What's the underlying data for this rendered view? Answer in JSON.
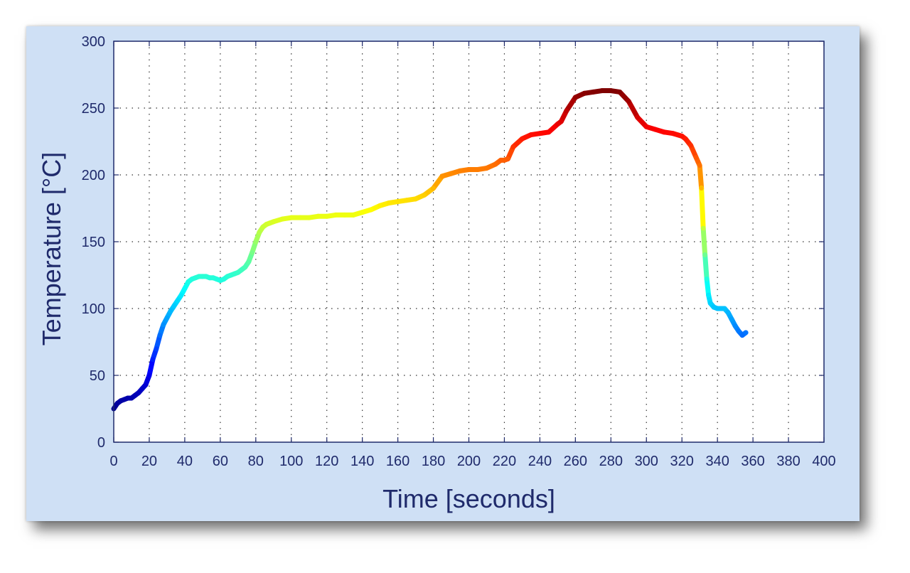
{
  "chart_data": {
    "type": "line",
    "title": "",
    "xlabel": "Time [seconds]",
    "ylabel": "Temperature [°C]",
    "xlim": [
      0,
      400
    ],
    "ylim": [
      0,
      300
    ],
    "xticks": [
      0,
      20,
      40,
      60,
      80,
      100,
      120,
      140,
      160,
      180,
      200,
      220,
      240,
      260,
      280,
      300,
      320,
      340,
      360,
      380,
      400
    ],
    "yticks": [
      0,
      50,
      100,
      150,
      200,
      250,
      300
    ],
    "grid": true,
    "grid_style": "dotted",
    "legend": "none",
    "colormap": "jet (colored by temperature)",
    "colors": {
      "frame_background": "#cfe0f5",
      "plot_background": "#ffffff",
      "axis_text": "#1f2a6b",
      "grid": "#333333"
    },
    "series": [
      {
        "x": [
          0,
          2,
          4,
          6,
          8,
          10,
          12,
          14,
          16,
          18,
          20,
          22,
          24,
          26,
          28,
          30,
          32,
          34,
          36,
          38,
          40,
          42,
          44,
          46,
          48,
          50,
          52,
          54,
          56,
          58,
          60,
          62,
          64,
          66,
          68,
          70,
          72,
          74,
          76,
          78,
          80,
          82,
          84,
          86,
          88,
          90,
          95,
          100,
          105,
          110,
          115,
          120,
          125,
          130,
          135,
          140,
          145,
          150,
          155,
          160,
          165,
          170,
          175,
          180,
          185,
          190,
          195,
          200,
          205,
          210,
          215,
          218,
          220,
          222,
          225,
          230,
          235,
          240,
          245,
          250,
          252,
          255,
          260,
          265,
          270,
          275,
          280,
          285,
          290,
          295,
          300,
          305,
          310,
          315,
          320,
          322,
          325,
          328,
          329,
          330,
          331,
          332,
          333,
          334,
          335,
          336,
          338,
          340,
          342,
          344,
          346,
          348,
          350,
          352,
          354,
          356
        ],
        "y": [
          25,
          29,
          31,
          32,
          33,
          33,
          35,
          37,
          40,
          43,
          50,
          62,
          70,
          80,
          88,
          93,
          98,
          102,
          106,
          110,
          115,
          120,
          122,
          123,
          124,
          124,
          124,
          123,
          123,
          122,
          121,
          122,
          124,
          125,
          126,
          127,
          129,
          131,
          135,
          142,
          150,
          157,
          161,
          163,
          164,
          165,
          167,
          168,
          168,
          168,
          169,
          169,
          170,
          170,
          170,
          172,
          174,
          177,
          179,
          180,
          181,
          182,
          185,
          190,
          199,
          201,
          203,
          204,
          204,
          205,
          208,
          211,
          211,
          212,
          221,
          227,
          230,
          231,
          232,
          238,
          240,
          248,
          258,
          261,
          262,
          263,
          263,
          262,
          255,
          243,
          236,
          234,
          232,
          231,
          229,
          227,
          222,
          213,
          210,
          207,
          190,
          160,
          140,
          122,
          110,
          104,
          101,
          100,
          100,
          100,
          97,
          92,
          87,
          83,
          80,
          82
        ]
      }
    ]
  }
}
